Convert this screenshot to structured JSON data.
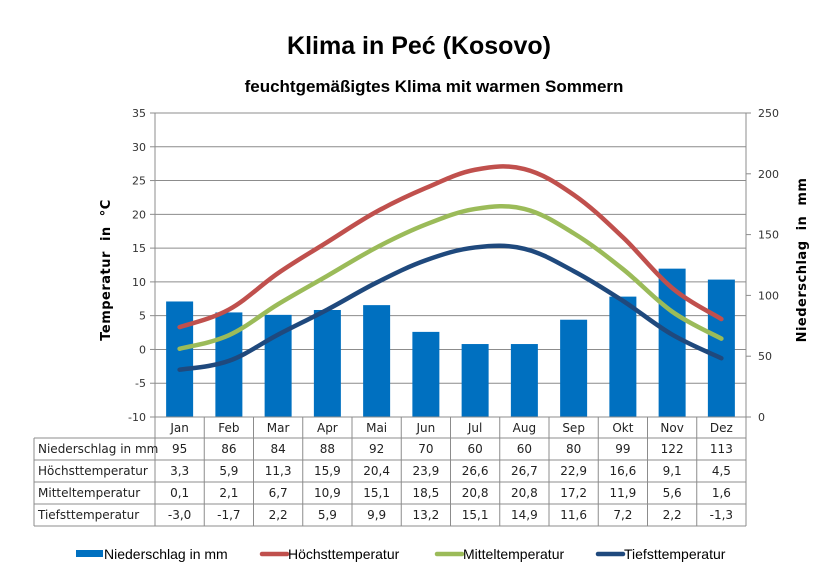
{
  "chart_data": {
    "type": "bar+line",
    "title": "Klima in Peć (Kosovo)",
    "subtitle": "feuchtgemäßigtes Klima mit warmen Sommern",
    "categories": [
      "Jan",
      "Feb",
      "Mar",
      "Apr",
      "Mai",
      "Jun",
      "Jul",
      "Aug",
      "Sep",
      "Okt",
      "Nov",
      "Dez"
    ],
    "y_left": {
      "label": "Temperatur  in  °C",
      "range": [
        -10,
        35
      ],
      "ticks": [
        -10,
        -5,
        0,
        5,
        10,
        15,
        20,
        25,
        30,
        35
      ]
    },
    "y_right": {
      "label": "Niederschlag  in  mm",
      "range": [
        0,
        250
      ],
      "ticks": [
        0,
        50,
        100,
        150,
        200,
        250
      ]
    },
    "grid": true,
    "legend_position": "bottom",
    "series": [
      {
        "name": "Niederschlag in mm",
        "type": "bar",
        "axis": "right",
        "color": "#0070C0",
        "values": [
          95,
          86,
          84,
          88,
          92,
          70,
          60,
          60,
          80,
          99,
          122,
          113
        ]
      },
      {
        "name": "Höchsttemperatur",
        "type": "line",
        "axis": "left",
        "color": "#C0504D",
        "values": [
          3.3,
          5.9,
          11.3,
          15.9,
          20.4,
          23.9,
          26.6,
          26.7,
          22.9,
          16.6,
          9.1,
          4.5
        ]
      },
      {
        "name": "Mitteltemperatur",
        "type": "line",
        "axis": "left",
        "color": "#9BBB59",
        "values": [
          0.1,
          2.1,
          6.7,
          10.9,
          15.1,
          18.5,
          20.8,
          20.8,
          17.2,
          11.9,
          5.6,
          1.6
        ]
      },
      {
        "name": "Tiefsttemperatur",
        "type": "line",
        "axis": "left",
        "color": "#1F497D",
        "values": [
          -3.0,
          -1.7,
          2.2,
          5.9,
          9.9,
          13.2,
          15.1,
          14.9,
          11.6,
          7.2,
          2.2,
          -1.3
        ]
      }
    ],
    "table": {
      "rows": [
        {
          "label": "Niederschlag in mm",
          "cells": [
            "95",
            "86",
            "84",
            "88",
            "92",
            "70",
            "60",
            "60",
            "80",
            "99",
            "122",
            "113"
          ]
        },
        {
          "label": "Höchsttemperatur",
          "cells": [
            "3,3",
            "5,9",
            "11,3",
            "15,9",
            "20,4",
            "23,9",
            "26,6",
            "26,7",
            "22,9",
            "16,6",
            "9,1",
            "4,5"
          ]
        },
        {
          "label": "Mitteltemperatur",
          "cells": [
            "0,1",
            "2,1",
            "6,7",
            "10,9",
            "15,1",
            "18,5",
            "20,8",
            "20,8",
            "17,2",
            "11,9",
            "5,6",
            "1,6"
          ]
        },
        {
          "label": "Tiefsttemperatur",
          "cells": [
            "-3,0",
            "-1,7",
            "2,2",
            "5,9",
            "9,9",
            "13,2",
            "15,1",
            "14,9",
            "11,6",
            "7,2",
            "2,2",
            "-1,3"
          ]
        }
      ]
    }
  }
}
